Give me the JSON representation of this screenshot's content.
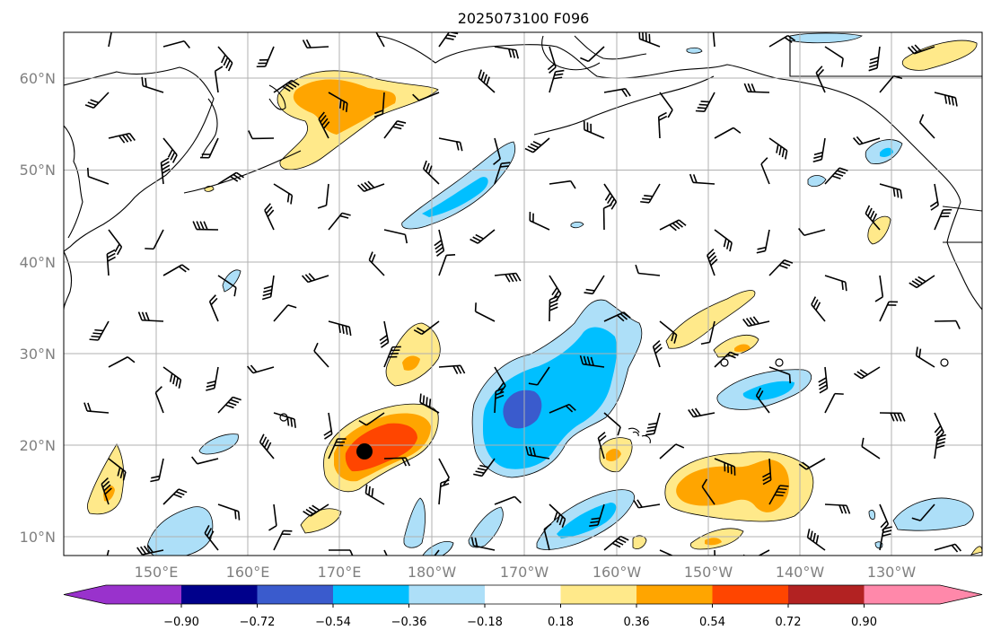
{
  "title": "2025073100 F096",
  "lat_labels": [
    "60°N",
    "50°N",
    "40°N",
    "30°N",
    "20°N",
    "10°N"
  ],
  "lon_labels": [
    "150°E",
    "160°E",
    "170°E",
    "180°W",
    "170°W",
    "160°W",
    "150°W",
    "140°W",
    "130°W"
  ],
  "colorbar": {
    "ticks": [
      "−0.90",
      "−0.72",
      "−0.54",
      "−0.36",
      "−0.18",
      "0.18",
      "0.36",
      "0.54",
      "0.72",
      "0.90"
    ],
    "colors": [
      "#9932CC",
      "#00008B",
      "#3A5BCD",
      "#00BFFF",
      "#ADDFF8",
      "#FFFFFF",
      "#FFE98A",
      "#FFA500",
      "#FF4500",
      "#B22222",
      "#FF88AA"
    ]
  },
  "colors": {
    "blue_light": "#ADDFF8",
    "blue": "#00BFFF",
    "blue_dark": "#3A5BCD",
    "yellow": "#FFE98A",
    "orange": "#FFA500",
    "red": "#FF4500",
    "land_outline": "#000000",
    "grid": "#B0B0B0"
  }
}
